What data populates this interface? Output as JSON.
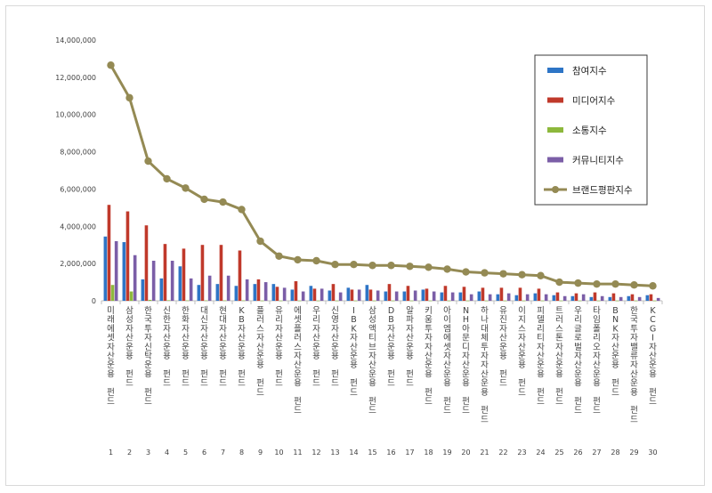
{
  "chart_data": {
    "type": "bar",
    "categories": [
      "미래에셋자산운용 펀드",
      "삼성자산운용 펀드",
      "한국투자신탁운용 펀드",
      "신한자산운용 펀드",
      "한화자산운용 펀드",
      "대신자산운용 펀드",
      "현대자산운용 펀드",
      "KB자산운용 펀드",
      "플러스자산운용 펀드",
      "유리자산운용 펀드",
      "에셋플러스자산운용 펀드",
      "우리자산운용 펀드",
      "신영자산운용 펀드",
      "IBK자산운용 펀드",
      "삼성액티브자산운용 펀드",
      "DB자산운용 펀드",
      "알파자산운용 펀드",
      "키움투자자산운용 펀드",
      "아이엠에셋자산운용 펀드",
      "NH아문디자산운용 펀드",
      "하나대체투자자산운용 펀드",
      "유진자산운용 펀드",
      "이지스자산운용 펀드",
      "피델리티자산운용 펀드",
      "트러스톤자산운용 펀드",
      "우리글로벌자산운용 펀드",
      "타임폴리오자산운용 펀드",
      "BNK자산운용 펀드",
      "한국투자밸류자산운용 펀드",
      "KCGI자산운용 펀드"
    ],
    "rank_labels": [
      "1",
      "2",
      "3",
      "4",
      "5",
      "6",
      "7",
      "8",
      "9",
      "10",
      "11",
      "12",
      "13",
      "14",
      "15",
      "16",
      "17",
      "18",
      "19",
      "20",
      "21",
      "22",
      "23",
      "24",
      "25",
      "26",
      "27",
      "28",
      "29",
      "30"
    ],
    "ylim": [
      0,
      14000000
    ],
    "yticks": [
      "0",
      "2,000,000",
      "4,000,000",
      "6,000,000",
      "8,000,000",
      "10,000,000",
      "12,000,000",
      "14,000,000"
    ],
    "ytick_values": [
      0,
      2000000,
      4000000,
      6000000,
      8000000,
      10000000,
      12000000,
      14000000
    ],
    "legend_position": "top-right",
    "grid": false,
    "series": [
      {
        "name": "참여지수",
        "kind": "bar",
        "color": "#2e75c6",
        "values": [
          3450000,
          3150000,
          1150000,
          1200000,
          1850000,
          850000,
          900000,
          800000,
          900000,
          900000,
          600000,
          800000,
          550000,
          700000,
          850000,
          500000,
          500000,
          600000,
          450000,
          450000,
          500000,
          350000,
          300000,
          400000,
          300000,
          250000,
          200000,
          200000,
          250000,
          300000
        ]
      },
      {
        "name": "미디어지수",
        "kind": "bar",
        "color": "#c0392b",
        "values": [
          5150000,
          4800000,
          4050000,
          3050000,
          2800000,
          3000000,
          3000000,
          2700000,
          1150000,
          750000,
          1050000,
          650000,
          900000,
          600000,
          600000,
          900000,
          800000,
          650000,
          800000,
          750000,
          700000,
          700000,
          700000,
          650000,
          450000,
          400000,
          450000,
          400000,
          350000,
          350000
        ]
      },
      {
        "name": "소통지수",
        "kind": "bar",
        "color": "#8db83c",
        "values": [
          850000,
          500000,
          50000,
          30000,
          20000,
          20000,
          20000,
          20000,
          10000,
          10000,
          10000,
          10000,
          10000,
          10000,
          10000,
          10000,
          10000,
          10000,
          10000,
          10000,
          10000,
          10000,
          10000,
          10000,
          10000,
          10000,
          10000,
          10000,
          10000,
          10000
        ]
      },
      {
        "name": "커뮤니티지수",
        "kind": "bar",
        "color": "#7b5ea7",
        "values": [
          3200000,
          2450000,
          2150000,
          2150000,
          1200000,
          1350000,
          1350000,
          1150000,
          1000000,
          700000,
          500000,
          650000,
          450000,
          600000,
          550000,
          500000,
          550000,
          500000,
          450000,
          350000,
          350000,
          400000,
          350000,
          350000,
          250000,
          350000,
          250000,
          200000,
          200000,
          150000
        ]
      },
      {
        "name": "브랜드평판지수",
        "kind": "line",
        "color": "#948a54",
        "values": [
          12650000,
          10900000,
          7500000,
          6550000,
          6050000,
          5450000,
          5300000,
          4900000,
          3200000,
          2400000,
          2200000,
          2150000,
          1950000,
          1950000,
          1900000,
          1900000,
          1850000,
          1800000,
          1700000,
          1550000,
          1500000,
          1450000,
          1400000,
          1350000,
          1000000,
          950000,
          900000,
          900000,
          850000,
          800000
        ]
      }
    ]
  }
}
